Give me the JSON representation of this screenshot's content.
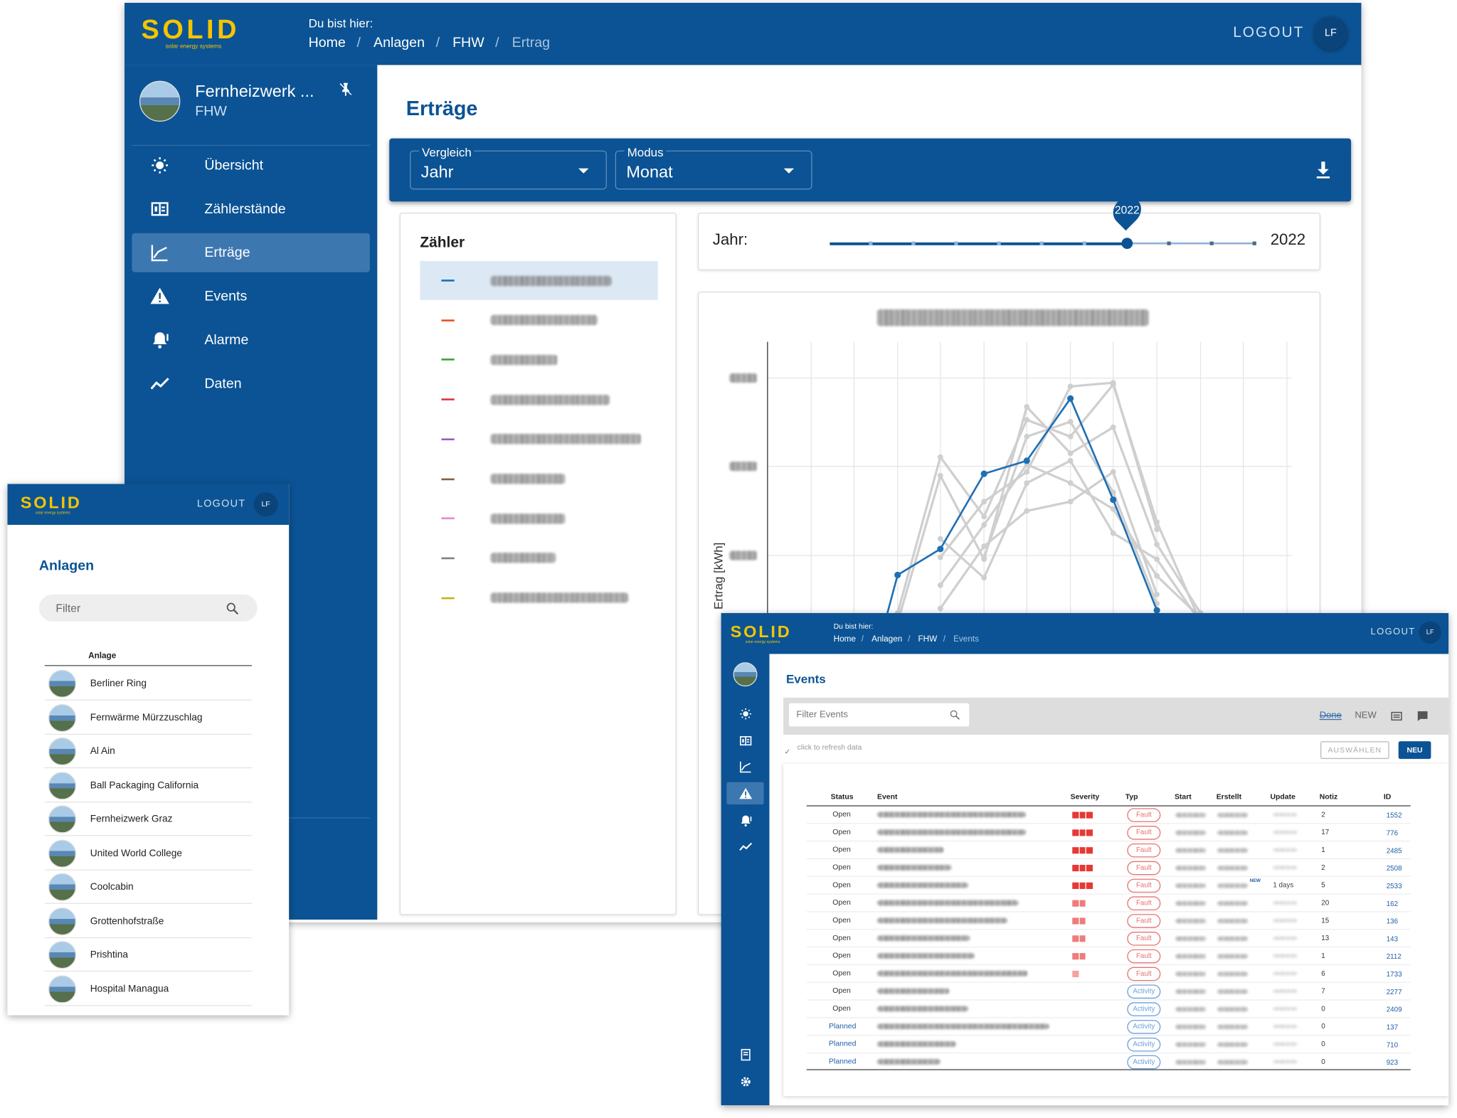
{
  "main": {
    "logo": "SOLID",
    "logo_sub": "solar energy systems",
    "breadcrumb_label": "Du bist hier:",
    "breadcrumb": [
      "Home",
      "Anlagen",
      "FHW",
      "Ertrag"
    ],
    "logout": "LOGOUT",
    "user": "LF",
    "plant_name": "Fernheizwerk ...",
    "plant_code": "FHW",
    "nav": [
      "Übersicht",
      "Zählerstände",
      "Erträge",
      "Events",
      "Alarme",
      "Daten"
    ],
    "page_title": "Erträge",
    "filters": [
      {
        "label": "Vergleich",
        "value": "Jahr"
      },
      {
        "label": "Modus",
        "value": "Monat"
      }
    ],
    "meter_title": "Zähler",
    "meter_colors": [
      "#1f6fb4",
      "#e8502a",
      "#3aa03a",
      "#d93a3a",
      "#9b59c6",
      "#8c5a46",
      "#e58ac8",
      "#808080",
      "#c8b21e"
    ],
    "year_label": "Jahr:",
    "year_bubble": "2022",
    "year_value": "2022",
    "y_axis_label": "Ertrag [kWh]"
  },
  "mobile": {
    "logo": "SOLID",
    "logo_sub": "solar energy systems",
    "logout": "LOGOUT",
    "user": "LF",
    "title": "Anlagen",
    "filter_placeholder": "Filter",
    "column": "Anlage",
    "plants": [
      "Berliner Ring",
      "Fernwärme Mürzzuschlag",
      "Al Ain",
      "Ball Packaging California",
      "Fernheizwerk Graz",
      "United World College",
      "Coolcabin",
      "Grottenhofstraße",
      "Prishtina",
      "Hospital Managua"
    ]
  },
  "events": {
    "logo": "SOLID",
    "logo_sub": "solar energy systems",
    "breadcrumb_label": "Du bist hier:",
    "breadcrumb": [
      "Home",
      "Anlagen",
      "FHW",
      "Events"
    ],
    "logout": "LOGOUT",
    "user": "LF",
    "title": "Events",
    "filter_placeholder": "Filter Events",
    "done": "Done",
    "new_label": "NEW",
    "refresh": "click to refresh data",
    "select": "AUSWÄHLEN",
    "new_button": "NEU",
    "columns": [
      "Status",
      "Event",
      "Severity",
      "Typ",
      "Start",
      "Erstellt",
      "Update",
      "Notiz",
      "ID"
    ],
    "severity_colors": {
      "1": "#f5a3a3",
      "2": "#ef7b7b",
      "3": "#e53935"
    },
    "rows": [
      {
        "status": "Open",
        "severity": 3,
        "type": "Fault",
        "update": null,
        "note": 2,
        "id": 1552
      },
      {
        "status": "Open",
        "severity": 3,
        "type": "Fault",
        "update": null,
        "note": 17,
        "id": 776
      },
      {
        "status": "Open",
        "severity": 3,
        "type": "Fault",
        "update": null,
        "note": 1,
        "id": 2485
      },
      {
        "status": "Open",
        "severity": 3,
        "type": "Fault",
        "update": null,
        "note": 2,
        "id": 2508
      },
      {
        "status": "Open",
        "severity": 3,
        "type": "Fault",
        "update": "1 days",
        "badge": "NEW",
        "note": 5,
        "id": 2533
      },
      {
        "status": "Open",
        "severity": 2,
        "type": "Fault",
        "update": null,
        "note": 20,
        "id": 162
      },
      {
        "status": "Open",
        "severity": 2,
        "type": "Fault",
        "update": null,
        "note": 15,
        "id": 136
      },
      {
        "status": "Open",
        "severity": 2,
        "type": "Fault",
        "update": null,
        "note": 13,
        "id": 143
      },
      {
        "status": "Open",
        "severity": 2,
        "type": "Fault",
        "update": null,
        "note": 1,
        "id": 2112
      },
      {
        "status": "Open",
        "severity": 1,
        "type": "Fault",
        "update": null,
        "note": 6,
        "id": 1733
      },
      {
        "status": "Open",
        "severity": 0,
        "type": "Activity",
        "update": null,
        "note": 7,
        "id": 2277
      },
      {
        "status": "Open",
        "severity": 0,
        "type": "Activity",
        "update": null,
        "note": 0,
        "id": 2409
      },
      {
        "status": "Planned",
        "severity": 0,
        "type": "Activity",
        "update": null,
        "note": 0,
        "id": 137
      },
      {
        "status": "Planned",
        "severity": 0,
        "type": "Activity",
        "update": null,
        "note": 0,
        "id": 710
      },
      {
        "status": "Planned",
        "severity": 0,
        "type": "Activity",
        "update": null,
        "note": 0,
        "id": 923
      }
    ]
  }
}
